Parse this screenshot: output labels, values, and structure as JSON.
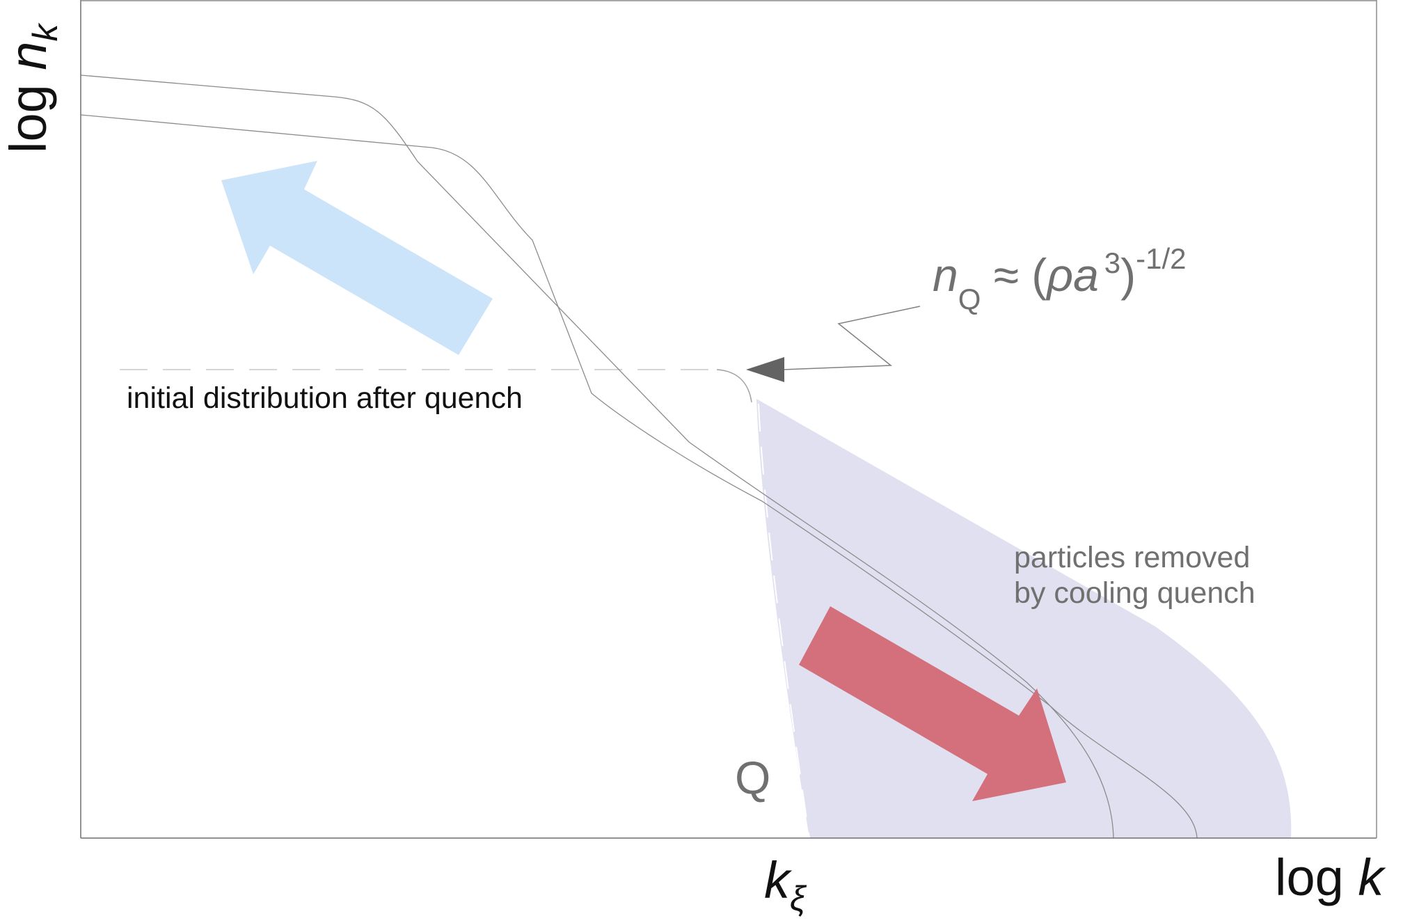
{
  "axes": {
    "y_label": {
      "prefix": "log ",
      "var": "n",
      "sub": "k"
    },
    "x_label": {
      "prefix": "log ",
      "var": "k"
    },
    "k_xi": {
      "var": "k",
      "sub": "ξ"
    }
  },
  "annotations": {
    "n_q_formula": {
      "var": "n",
      "sub": "Q",
      "approx": " ≈ (",
      "rho_a": "ρa",
      "cube": "3",
      "close": ")",
      "exponent": "-1/2"
    },
    "initial_distribution": "initial distribution after quench",
    "particles_removed_line1": "particles removed",
    "particles_removed_line2": "by cooling quench",
    "q_label": "Q"
  },
  "colors": {
    "axis": "#6e6e6e",
    "curve": "#8c8c8c",
    "shaded_region": "#e0e0f0",
    "blue_arrow": "#cce4fa",
    "red_arrow": "#d4707c",
    "annotation_text": "#707070",
    "pointer_arrow": "#636363"
  }
}
